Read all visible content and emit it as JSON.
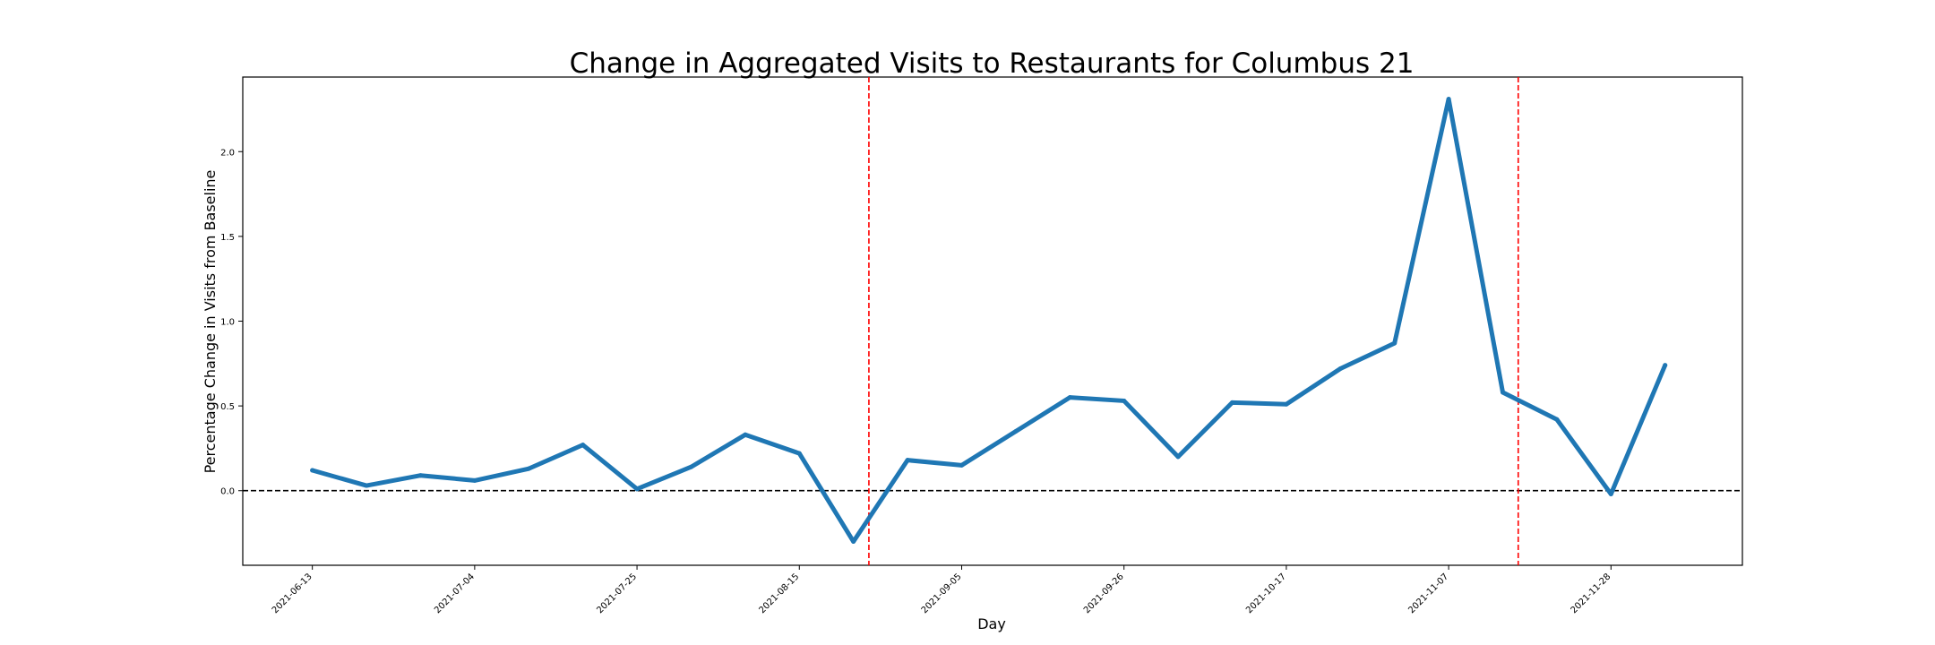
{
  "chart_data": {
    "type": "line",
    "title": "Change in Aggregated Visits to Restaurants for Columbus 21",
    "xlabel": "Day",
    "ylabel": "Percentage Change in Visits from Baseline",
    "x_tick_labels": [
      "2021-06-13",
      "2021-07-04",
      "2021-07-25",
      "2021-08-15",
      "2021-09-05",
      "2021-09-26",
      "2021-10-17",
      "2021-11-07",
      "2021-11-28"
    ],
    "y_ticks": [
      0.0,
      0.5,
      1.0,
      1.5,
      2.0
    ],
    "y_tick_labels": [
      "0.0",
      "0.5",
      "1.0",
      "1.5",
      "2.0"
    ],
    "ylim": [
      -0.44,
      2.44
    ],
    "xlim": [
      "2021-06-04",
      "2021-12-15"
    ],
    "grid": false,
    "series": [
      {
        "color": "#1f77b4",
        "points": [
          {
            "x": "2021-06-13",
            "y": 0.12
          },
          {
            "x": "2021-06-20",
            "y": 0.03
          },
          {
            "x": "2021-06-27",
            "y": 0.09
          },
          {
            "x": "2021-07-04",
            "y": 0.06
          },
          {
            "x": "2021-07-11",
            "y": 0.13
          },
          {
            "x": "2021-07-18",
            "y": 0.27
          },
          {
            "x": "2021-07-25",
            "y": 0.01
          },
          {
            "x": "2021-08-01",
            "y": 0.14
          },
          {
            "x": "2021-08-08",
            "y": 0.33
          },
          {
            "x": "2021-08-15",
            "y": 0.22
          },
          {
            "x": "2021-08-22",
            "y": -0.3
          },
          {
            "x": "2021-08-29",
            "y": 0.18
          },
          {
            "x": "2021-09-05",
            "y": 0.15
          },
          {
            "x": "2021-09-12",
            "y": 0.35
          },
          {
            "x": "2021-09-19",
            "y": 0.55
          },
          {
            "x": "2021-09-26",
            "y": 0.53
          },
          {
            "x": "2021-10-03",
            "y": 0.2
          },
          {
            "x": "2021-10-10",
            "y": 0.52
          },
          {
            "x": "2021-10-17",
            "y": 0.51
          },
          {
            "x": "2021-10-24",
            "y": 0.72
          },
          {
            "x": "2021-10-31",
            "y": 0.87
          },
          {
            "x": "2021-11-07",
            "y": 2.31
          },
          {
            "x": "2021-11-14",
            "y": 0.58
          },
          {
            "x": "2021-11-21",
            "y": 0.42
          },
          {
            "x": "2021-11-28",
            "y": -0.02
          },
          {
            "x": "2021-12-05",
            "y": 0.74
          }
        ]
      }
    ],
    "reference_lines": [
      {
        "orientation": "horizontal",
        "value": 0.0,
        "color": "#000000",
        "style": "dashed"
      },
      {
        "orientation": "vertical",
        "value": "2021-08-24",
        "color": "#ff0000",
        "style": "dashed"
      },
      {
        "orientation": "vertical",
        "value": "2021-11-16",
        "color": "#ff0000",
        "style": "dashed"
      }
    ]
  }
}
